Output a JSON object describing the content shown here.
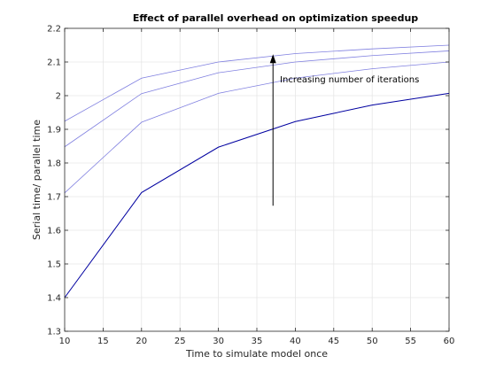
{
  "chart_data": {
    "type": "line",
    "title": "Effect of parallel overhead on optimization speedup",
    "xlabel": "Time to simulate model once",
    "ylabel": "Serial time/ parallel time",
    "xlim": [
      10,
      60
    ],
    "ylim": [
      1.3,
      2.2
    ],
    "xticks": [
      10,
      15,
      20,
      25,
      30,
      35,
      40,
      45,
      50,
      55,
      60
    ],
    "yticks": [
      1.3,
      1.4,
      1.5,
      1.6,
      1.7,
      1.8,
      1.9,
      2.0,
      2.1,
      2.2
    ],
    "ytick_labels": [
      "1.3",
      "1.4",
      "1.5",
      "1.6",
      "1.7",
      "1.8",
      "1.9",
      "2",
      "2.1",
      "2.2"
    ],
    "grid": true,
    "x": [
      10,
      20,
      30,
      40,
      50,
      60
    ],
    "series": [
      {
        "values": [
          1.4,
          1.712,
          1.847,
          1.923,
          1.972,
          2.007
        ],
        "color": "#0000a0"
      },
      {
        "values": [
          1.711,
          1.921,
          2.007,
          2.052,
          2.08,
          2.1
        ],
        "color": "#8080e0"
      },
      {
        "values": [
          1.848,
          2.006,
          2.068,
          2.1,
          2.119,
          2.133
        ],
        "color": "#8080e0"
      },
      {
        "values": [
          1.924,
          2.052,
          2.1,
          2.125,
          2.139,
          2.15
        ],
        "color": "#8080e0"
      }
    ],
    "annotation": {
      "text": "Increasing number of iterations",
      "arrow_x": 37.1,
      "arrow_from": 1.673,
      "arrow_to": 2.123,
      "text_x": 38.0,
      "text_y": 2.04
    }
  }
}
